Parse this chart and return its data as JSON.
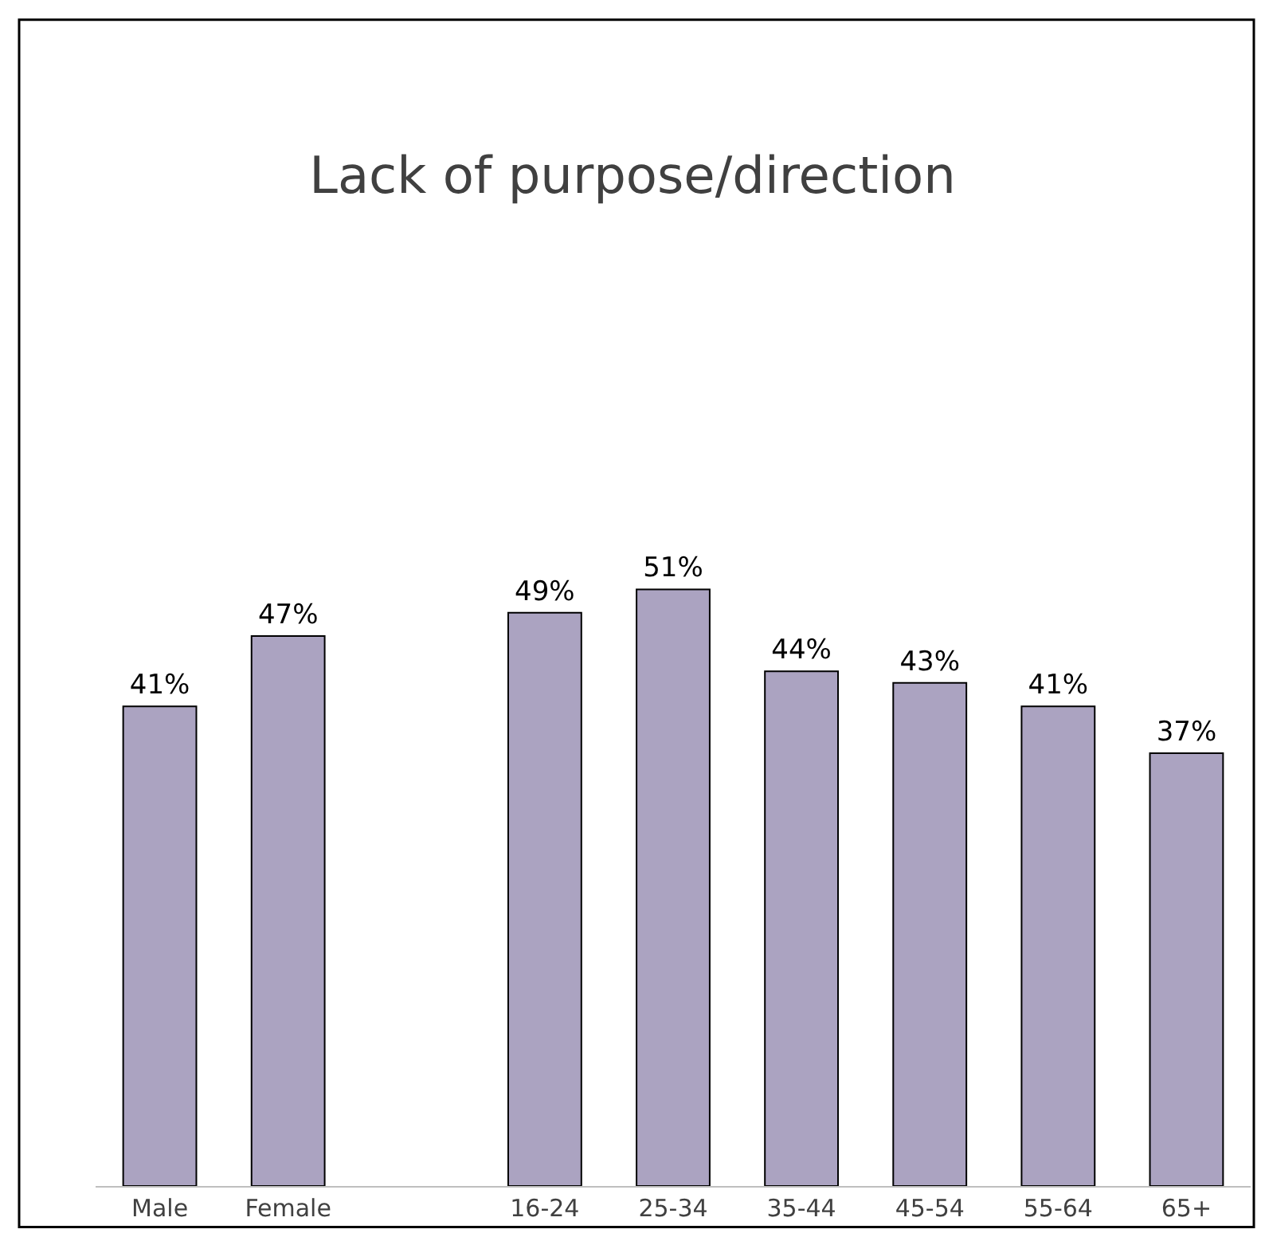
{
  "chart_data": {
    "type": "bar",
    "title": "Lack of purpose/direction",
    "categories": [
      "Male",
      "Female",
      null,
      "16-24",
      "25-34",
      "35-44",
      "45-54",
      "55-64",
      "65+"
    ],
    "values": [
      41,
      47,
      null,
      49,
      51,
      44,
      43,
      41,
      37
    ],
    "value_labels": [
      "41%",
      "47%",
      null,
      "49%",
      "51%",
      "44%",
      "43%",
      "41%",
      "37%"
    ],
    "color": "#aba3c1",
    "tick_labels": "x"
  }
}
